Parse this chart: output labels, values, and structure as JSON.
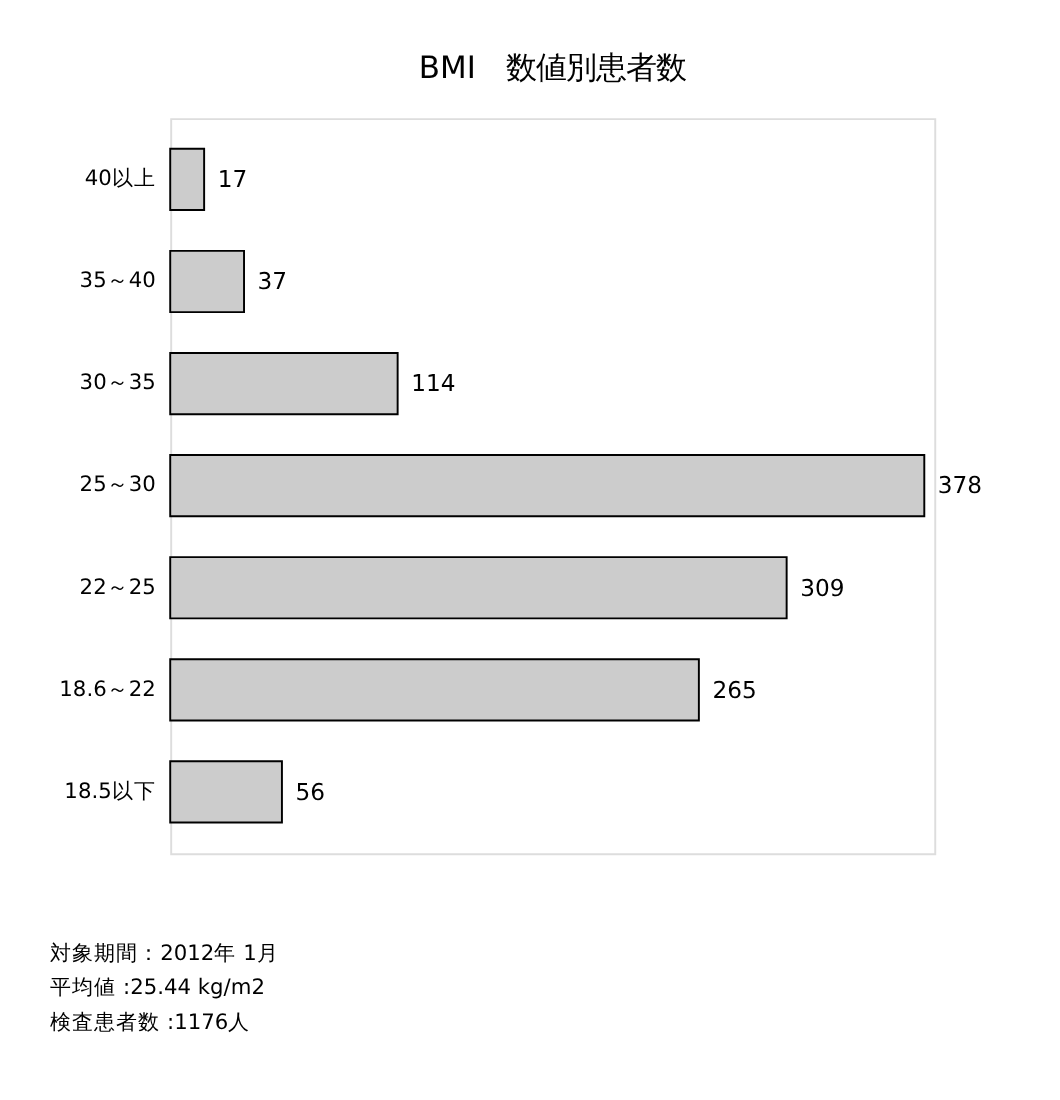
{
  "chart_data": {
    "type": "bar",
    "orientation": "horizontal",
    "title": "BMI　数値別患者数",
    "categories": [
      "40以上",
      "35～40",
      "30～35",
      "25～30",
      "22～25",
      "18.6～22",
      "18.5以下"
    ],
    "values": [
      17,
      37,
      114,
      378,
      309,
      265,
      56
    ],
    "color": "#cccccc",
    "xlim": [
      0,
      383
    ],
    "tick_labels": "y",
    "data_labels": true,
    "grid": false,
    "annotations": [
      "対象期間：2012年 1月",
      "平均値 :25.44 kg/m2",
      "検査患者数 :1176人"
    ]
  }
}
